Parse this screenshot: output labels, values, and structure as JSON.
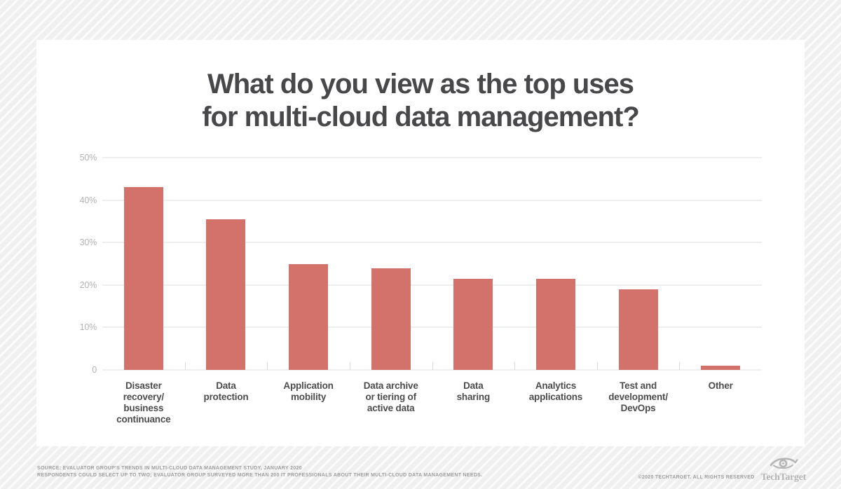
{
  "header": {
    "title_lines": [
      "What do you view as the top uses",
      "for multi-cloud data management?"
    ]
  },
  "chart_data": {
    "type": "bar",
    "title": "What do you view as the top uses for multi-cloud data management?",
    "categories": [
      "Disaster\nrecovery/\nbusiness\ncontinuance",
      "Data\nprotection",
      "Application\nmobility",
      "Data archive\nor tiering of\nactive data",
      "Data\nsharing",
      "Analytics\napplications",
      "Test and\ndevelopment/\nDevOps",
      "Other"
    ],
    "values": [
      43,
      35.5,
      25,
      24,
      21.5,
      21.5,
      19,
      1
    ],
    "xlabel": "",
    "ylabel": "",
    "ylim": [
      0,
      50
    ],
    "yticks": [
      {
        "label": "50%",
        "value": 50
      },
      {
        "label": "40%",
        "value": 40
      },
      {
        "label": "30%",
        "value": 30
      },
      {
        "label": "20%",
        "value": 20
      },
      {
        "label": "10%",
        "value": 10
      },
      {
        "label": "0",
        "value": 0
      }
    ],
    "grid": true,
    "legend": "none",
    "colors": {
      "bar": "#d3726b",
      "title_text": "#48484a",
      "axis_label_text": "#b2b2b5",
      "gridline": "#dcdcdc"
    }
  },
  "footer": {
    "source_line1": "SOURCE: EVALUATOR GROUP'S TRENDS IN MULTI-CLOUD DATA MANAGEMENT STUDY, JANUARY 2020",
    "source_line2": "RESPONDENTS COULD SELECT UP TO TWO; EVALUATOR GROUP SURVEYED MORE THAN 200 IT PROFESSIONALS ABOUT THEIR MULTI-CLOUD DATA MANAGEMENT NEEDS.",
    "copyright": "©2020 TECHTARGET. ALL RIGHTS RESERVED",
    "logo_text": "TechTarget",
    "logo_icon": "eye-icon"
  }
}
